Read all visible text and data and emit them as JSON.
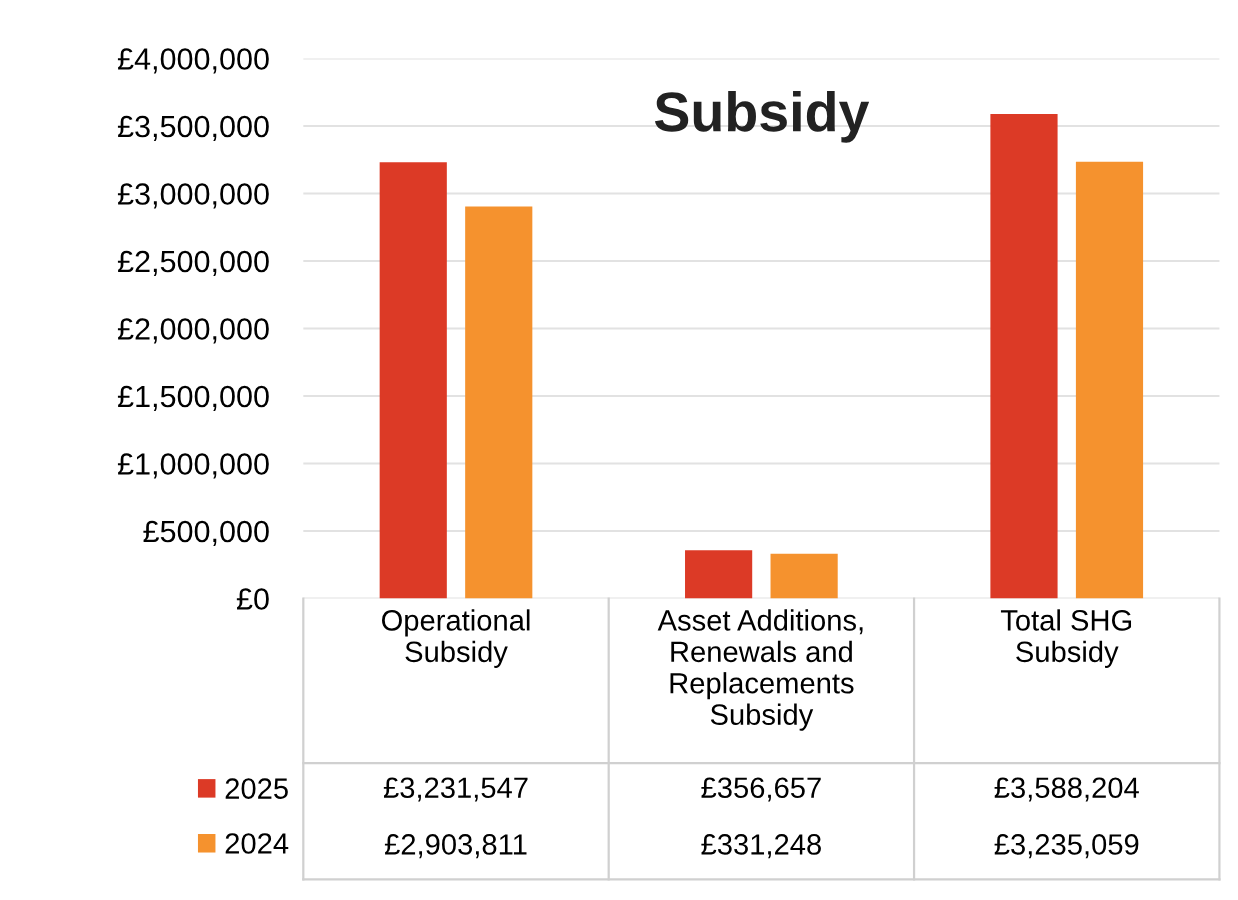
{
  "chart_data": {
    "type": "bar",
    "title": "Subsidy",
    "categories": [
      "Operational\nSubsidy",
      "Asset Additions,\nRenewals and\nReplacements\nSubsidy",
      "Total SHG\nSubsidy"
    ],
    "series": [
      {
        "name": "2025",
        "color": "#dc3a26",
        "values": [
          3231547,
          356657,
          3588204
        ],
        "value_labels": [
          "£3,231,547",
          "£356,657",
          "£3,588,204"
        ]
      },
      {
        "name": "2024",
        "color": "#f5922e",
        "values": [
          2903811,
          331248,
          3235059
        ],
        "value_labels": [
          "£2,903,811",
          "£331,248",
          "£3,235,059"
        ]
      }
    ],
    "ylim": [
      0,
      4000000
    ],
    "yticks": [
      {
        "value": 0,
        "label": "£0"
      },
      {
        "value": 500000,
        "label": "£500,000"
      },
      {
        "value": 1000000,
        "label": "£1,000,000"
      },
      {
        "value": 1500000,
        "label": "£1,500,000"
      },
      {
        "value": 2000000,
        "label": "£2,000,000"
      },
      {
        "value": 2500000,
        "label": "£2,500,000"
      },
      {
        "value": 3000000,
        "label": "£3,000,000"
      },
      {
        "value": 3500000,
        "label": "£3,500,000"
      },
      {
        "value": 4000000,
        "label": "£4,000,000"
      }
    ],
    "grid": "y",
    "legend": "bottom left"
  }
}
